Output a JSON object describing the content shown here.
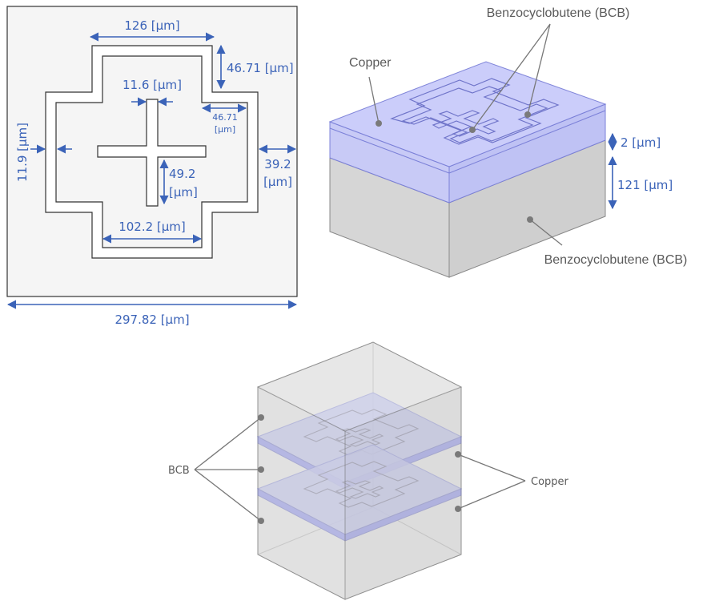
{
  "top_view": {
    "dimensions": {
      "outer_width": "126 [μm]",
      "arm_height": "46.71 [μm]",
      "slot_width": "11.6 [μm]",
      "arm_offset_line1": "46.71",
      "arm_offset_line2": "[μm]",
      "ring_width": "11.9 [μm]",
      "edge_gap_line1": "39.2",
      "edge_gap_line2": "[μm]",
      "cross_arm_line1": "49.2",
      "cross_arm_line2": "[μm]",
      "inner_width": "102.2 [μm]",
      "cell_size": "297.82 [μm]"
    }
  },
  "unit_cell_3d": {
    "labels": {
      "copper": "Copper",
      "bcb_top": "Benzocyclobutene (BCB)",
      "bcb_bottom": "Benzocyclobutene (BCB)"
    },
    "dimensions": {
      "copper_thickness": "2 [μm]",
      "substrate_thickness": "121 [μm]"
    }
  },
  "stack_3d": {
    "labels": {
      "bcb": "BCB",
      "copper": "Copper"
    }
  },
  "colors": {
    "dimension": "#3b63b8",
    "copper_layer": "#8a8ff0",
    "bcb_gray": "#d9d9d9",
    "label_gray": "#5a5a5a"
  }
}
